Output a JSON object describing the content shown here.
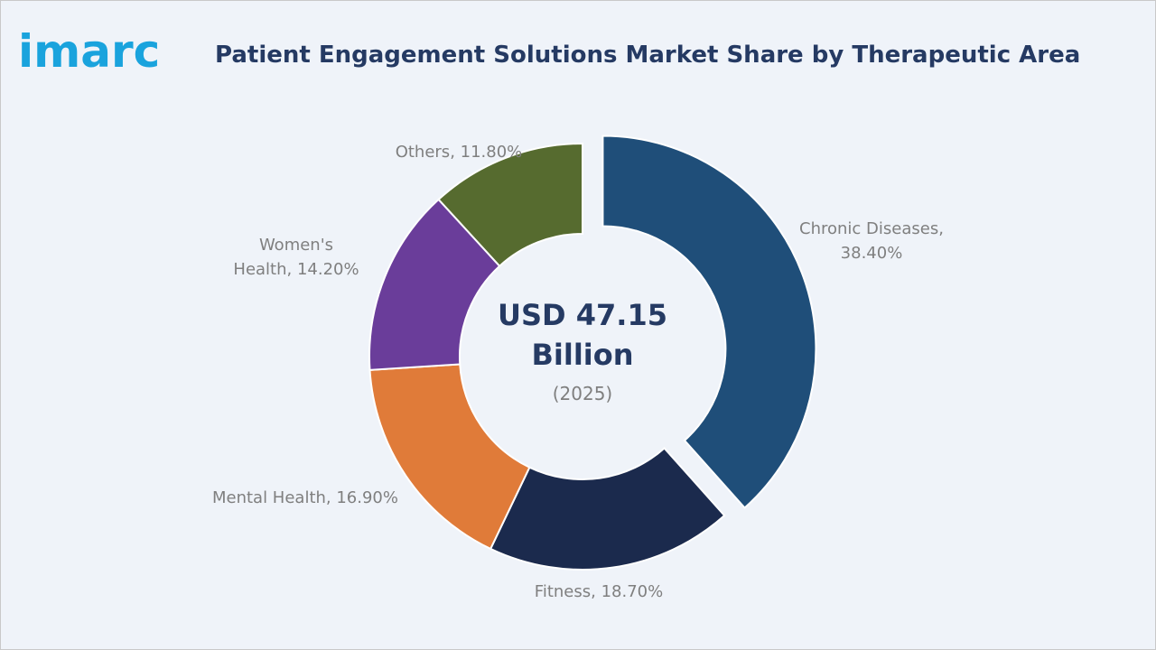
{
  "brand": "imarc",
  "chart_data": {
    "type": "donut",
    "title": "Patient Engagement Solutions Market Share by Therapeutic Area",
    "center_value": "USD 47.15",
    "center_unit": "Billion",
    "center_year": "(2025)",
    "values": [
      38.4,
      18.7,
      16.9,
      14.2,
      11.8
    ],
    "value_labels": [
      "Chronic Diseases,\n38.40%",
      "Fitness, 18.70%",
      "Mental Health, 16.90%",
      "Women's\nHealth, 14.20%",
      "Others, 11.80%"
    ],
    "colors": [
      "#1f4e79",
      "#1b2a4d",
      "#e07b39",
      "#6a3d9a",
      "#566b2f"
    ],
    "exploded": [
      true,
      false,
      false,
      false,
      false
    ]
  }
}
